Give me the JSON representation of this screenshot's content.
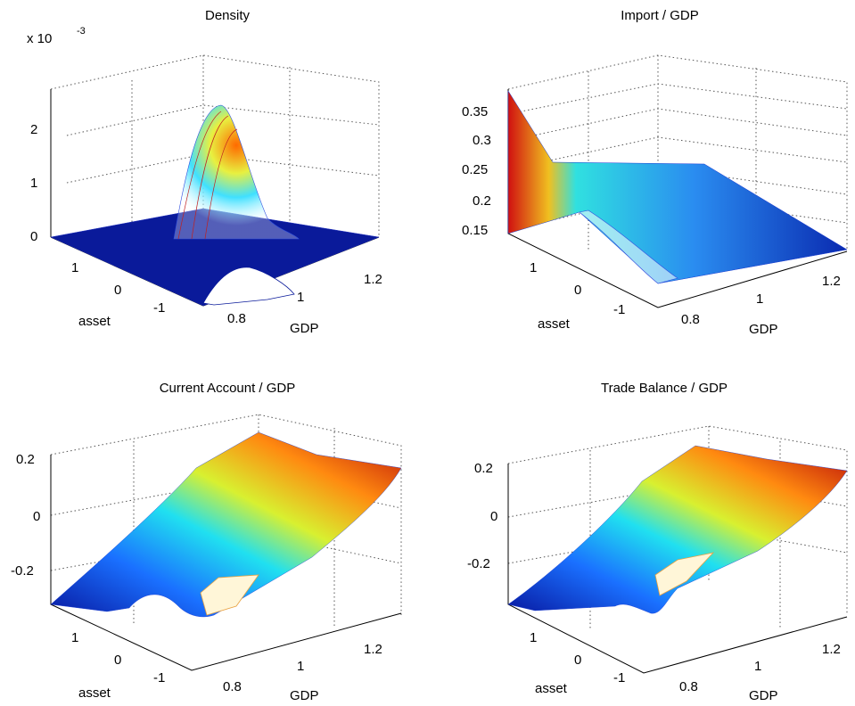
{
  "figure": {
    "panels": [
      {
        "id": "density",
        "title": "Density",
        "ylabel": "asset",
        "xlabel": "GDP",
        "z_ticks": [
          "0",
          "1",
          "2"
        ],
        "exponent_prefix": "x 10",
        "exponent_power": "-3",
        "asset_ticks": [
          "1",
          "0",
          "-1"
        ],
        "gdp_ticks": [
          "0.8",
          "1",
          "1.2"
        ]
      },
      {
        "id": "import_gdp",
        "title": "Import / GDP",
        "ylabel": "asset",
        "xlabel": "GDP",
        "z_ticks": [
          "0.15",
          "0.2",
          "0.25",
          "0.3",
          "0.35"
        ],
        "asset_ticks": [
          "1",
          "0",
          "-1"
        ],
        "gdp_ticks": [
          "0.8",
          "1",
          "1.2"
        ]
      },
      {
        "id": "current_account_gdp",
        "title": "Current Account / GDP",
        "ylabel": "asset",
        "xlabel": "GDP",
        "z_ticks": [
          "-0.2",
          "0",
          "0.2"
        ],
        "asset_ticks": [
          "1",
          "0",
          "-1"
        ],
        "gdp_ticks": [
          "0.8",
          "1",
          "1.2"
        ]
      },
      {
        "id": "trade_balance_gdp",
        "title": "Trade Balance / GDP",
        "ylabel": "asset",
        "xlabel": "GDP",
        "z_ticks": [
          "-0.2",
          "0",
          "0.2"
        ],
        "asset_ticks": [
          "1",
          "0",
          "-1"
        ],
        "gdp_ticks": [
          "0.8",
          "1",
          "1.2"
        ]
      }
    ]
  },
  "chart_data": [
    {
      "type": "surface",
      "title": "Density",
      "xlabel": "GDP",
      "ylabel": "asset",
      "x_range": [
        0.7,
        1.3
      ],
      "y_range": [
        -1.5,
        1.5
      ],
      "z_range": [
        0,
        0.0025
      ],
      "z_scale_exponent": -3,
      "grid": true,
      "colormap": "jet",
      "peak": {
        "GDP": 0.85,
        "asset": 0.3,
        "value": 0.00245
      }
    },
    {
      "type": "surface",
      "title": "Import / GDP",
      "xlabel": "GDP",
      "ylabel": "asset",
      "x_range": [
        0.7,
        1.3
      ],
      "y_range": [
        -1.5,
        1.5
      ],
      "z_range": [
        0.13,
        0.38
      ],
      "grid": true,
      "colormap": "jet",
      "corners": {
        "low_gdp_high_asset": 0.38,
        "low_gdp_low_asset": 0.14,
        "high_gdp_high_asset": 0.25,
        "high_gdp_low_asset": 0.14
      }
    },
    {
      "type": "surface",
      "title": "Current Account / GDP",
      "xlabel": "GDP",
      "ylabel": "asset",
      "x_range": [
        0.7,
        1.3
      ],
      "y_range": [
        -1.5,
        1.5
      ],
      "z_range": [
        -0.3,
        0.25
      ],
      "grid": true,
      "colormap": "jet",
      "corners": {
        "low_gdp_high_asset": -0.3,
        "low_gdp_low_asset": -0.3,
        "high_gdp_high_asset": 0.25,
        "high_gdp_low_asset": 0.2
      }
    },
    {
      "type": "surface",
      "title": "Trade Balance / GDP",
      "xlabel": "GDP",
      "ylabel": "asset",
      "x_range": [
        0.7,
        1.3
      ],
      "y_range": [
        -1.5,
        1.5
      ],
      "z_range": [
        -0.3,
        0.25
      ],
      "grid": true,
      "colormap": "jet",
      "corners": {
        "low_gdp_high_asset": -0.3,
        "low_gdp_low_asset": -0.25,
        "high_gdp_high_asset": 0.22,
        "high_gdp_low_asset": 0.2
      }
    }
  ]
}
